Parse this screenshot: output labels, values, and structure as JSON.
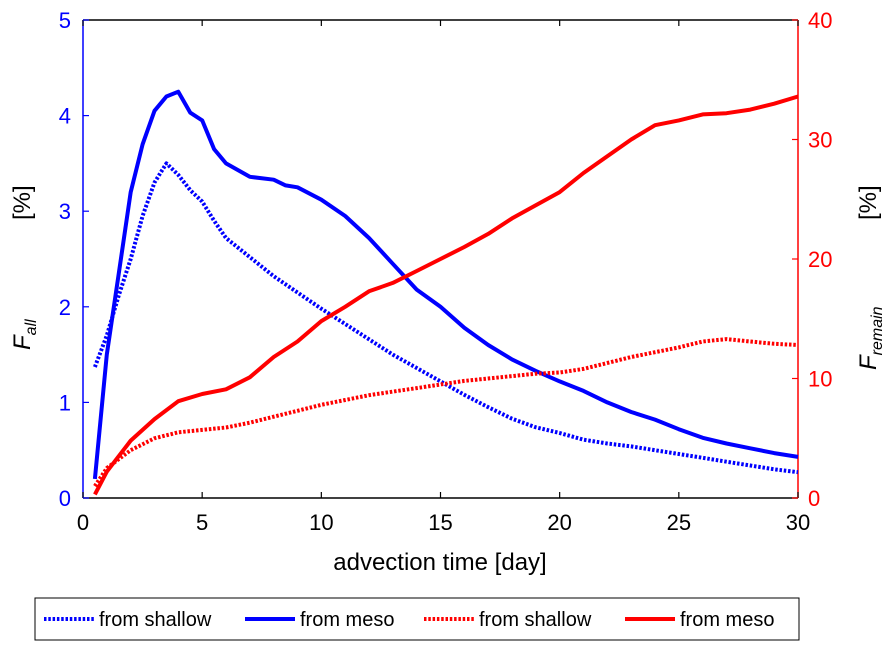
{
  "chart_data": {
    "type": "line",
    "x_label": "advection time  [day]",
    "x_ticks": [
      "0",
      "5",
      "10",
      "15",
      "20",
      "25",
      "30"
    ],
    "xlim": [
      0,
      30
    ],
    "left_axis": {
      "label_main": "F",
      "label_sub": "all",
      "label_unit": "[%]",
      "ylim": [
        0,
        5
      ],
      "ticks": [
        "0",
        "1",
        "2",
        "3",
        "4",
        "5"
      ],
      "color": "#0000ff"
    },
    "right_axis": {
      "label_main": "F",
      "label_sub": "remain",
      "label_unit": "[%]",
      "ylim": [
        0,
        40
      ],
      "ticks": [
        "0",
        "10",
        "20",
        "30",
        "40"
      ],
      "color": "#ff0000"
    },
    "series": [
      {
        "name": "from shallow",
        "axis": "left",
        "color": "#0000ff",
        "style": "dotted",
        "x": [
          0.5,
          1,
          1.5,
          2,
          2.5,
          3,
          3.5,
          4,
          4.5,
          5,
          5.5,
          6,
          7,
          8,
          9,
          10,
          11,
          12,
          13,
          14,
          15,
          16,
          17,
          18,
          19,
          20,
          21,
          22,
          23,
          24,
          25,
          26,
          27,
          28,
          29,
          30
        ],
        "y": [
          1.37,
          1.7,
          2.12,
          2.5,
          2.95,
          3.3,
          3.5,
          3.38,
          3.22,
          3.1,
          2.9,
          2.72,
          2.52,
          2.32,
          2.15,
          1.98,
          1.82,
          1.66,
          1.5,
          1.36,
          1.22,
          1.08,
          0.95,
          0.83,
          0.74,
          0.68,
          0.61,
          0.57,
          0.54,
          0.5,
          0.46,
          0.42,
          0.38,
          0.34,
          0.3,
          0.27
        ]
      },
      {
        "name": "from meso",
        "axis": "left",
        "color": "#0000ff",
        "style": "solid",
        "x": [
          0.5,
          1,
          1.5,
          2,
          2.5,
          3,
          3.5,
          4,
          4.5,
          5,
          5.5,
          6,
          7,
          8,
          8.5,
          9,
          10,
          11,
          12,
          13,
          14,
          15,
          16,
          17,
          18,
          19,
          20,
          21,
          22,
          23,
          24,
          25,
          26,
          27,
          28,
          29,
          30
        ],
        "y": [
          0.2,
          1.5,
          2.35,
          3.2,
          3.7,
          4.05,
          4.2,
          4.25,
          4.03,
          3.95,
          3.65,
          3.5,
          3.36,
          3.33,
          3.27,
          3.25,
          3.12,
          2.95,
          2.72,
          2.45,
          2.18,
          2.0,
          1.78,
          1.6,
          1.45,
          1.33,
          1.22,
          1.12,
          1.0,
          0.9,
          0.82,
          0.72,
          0.63,
          0.57,
          0.52,
          0.47,
          0.43
        ]
      },
      {
        "name": "from shallow",
        "axis": "right",
        "color": "#ff0000",
        "style": "dotted",
        "x": [
          0.5,
          1,
          2,
          3,
          4,
          5,
          6,
          7,
          8,
          9,
          10,
          11,
          12,
          13,
          14,
          15,
          16,
          17,
          18,
          19,
          20,
          21,
          22,
          23,
          24,
          25,
          26,
          27,
          28,
          29,
          30
        ],
        "y": [
          1.0,
          2.5,
          4.0,
          5.0,
          5.5,
          5.7,
          5.9,
          6.3,
          6.8,
          7.3,
          7.8,
          8.2,
          8.6,
          8.9,
          9.2,
          9.5,
          9.8,
          10.0,
          10.2,
          10.4,
          10.5,
          10.8,
          11.3,
          11.8,
          12.2,
          12.6,
          13.1,
          13.3,
          13.1,
          12.9,
          12.8
        ]
      },
      {
        "name": "from meso",
        "axis": "right",
        "color": "#ff0000",
        "style": "solid",
        "x": [
          0.5,
          1,
          2,
          3,
          4,
          5,
          6,
          7,
          8,
          9,
          10,
          11,
          12,
          13,
          14,
          15,
          16,
          17,
          18,
          19,
          20,
          21,
          22,
          23,
          24,
          25,
          26,
          27,
          28,
          29,
          30
        ],
        "y": [
          0.3,
          2.2,
          4.8,
          6.6,
          8.1,
          8.7,
          9.1,
          10.1,
          11.8,
          13.1,
          14.8,
          16.0,
          17.3,
          18.0,
          19.0,
          20.0,
          21.0,
          22.1,
          23.4,
          24.5,
          25.6,
          27.2,
          28.6,
          30.0,
          31.2,
          31.6,
          32.1,
          32.2,
          32.5,
          33.0,
          33.6
        ]
      }
    ],
    "legend": {
      "placement": "bottom",
      "entries": [
        "from shallow",
        "from meso",
        "from shallow",
        "from meso"
      ]
    }
  }
}
